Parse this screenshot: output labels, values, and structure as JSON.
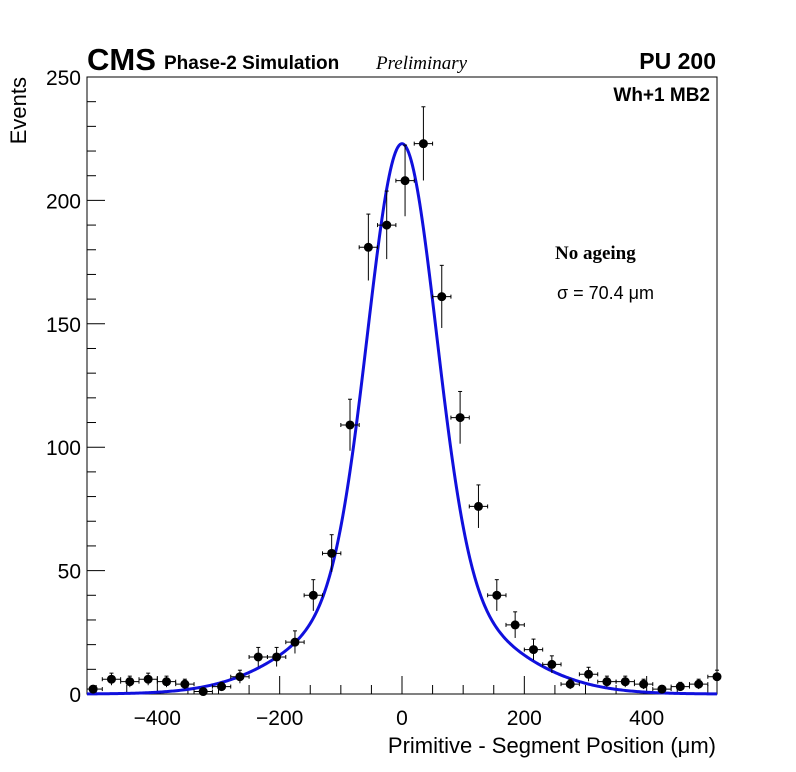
{
  "chart_data": {
    "type": "scatter",
    "header": {
      "cms": "CMS",
      "phase": "Phase-2 Simulation",
      "preliminary": "Preliminary",
      "pileup": "PU 200"
    },
    "region_label": "Wh+1 MB2",
    "ageing_label": "No ageing",
    "sigma_label": "σ = 70.4 μm",
    "xlabel": "Primitive - Segment Position (μm)",
    "ylabel": "Events",
    "xlim": [
      -515,
      515
    ],
    "ylim": [
      0,
      250
    ],
    "x_ticks": [
      -400,
      -200,
      0,
      200,
      400
    ],
    "x_tick_labels": [
      "−400",
      "−200",
      "0",
      "200",
      "400"
    ],
    "y_ticks": [
      0,
      50,
      100,
      150,
      200,
      250
    ],
    "y_tick_labels": [
      "0",
      "50",
      "100",
      "150",
      "200",
      "250"
    ],
    "bin_width": 30,
    "colors": {
      "points": "#000000",
      "fit": "#1010dd",
      "axes": "#000000"
    },
    "series": [
      {
        "name": "data",
        "x": [
          -505,
          -475,
          -445,
          -415,
          -385,
          -355,
          -325,
          -295,
          -265,
          -235,
          -205,
          -175,
          -145,
          -115,
          -85,
          -55,
          -25,
          5,
          35,
          65,
          95,
          125,
          155,
          185,
          215,
          245,
          275,
          305,
          335,
          365,
          395,
          425,
          455,
          485,
          515
        ],
        "y": [
          2,
          6,
          5,
          6,
          5,
          4,
          1,
          3,
          7,
          15,
          15,
          21,
          40,
          57,
          109,
          181,
          190,
          208,
          223,
          161,
          112,
          76,
          40,
          28,
          18,
          12,
          4,
          8,
          5,
          5,
          4,
          2,
          3,
          4,
          7
        ]
      },
      {
        "name": "fit",
        "function": "gauss+gauss",
        "center": 0,
        "peak": 223,
        "core_sigma": 55,
        "core_amplitude": 180,
        "tail_sigma": 140,
        "tail_amplitude": 43
      }
    ]
  }
}
